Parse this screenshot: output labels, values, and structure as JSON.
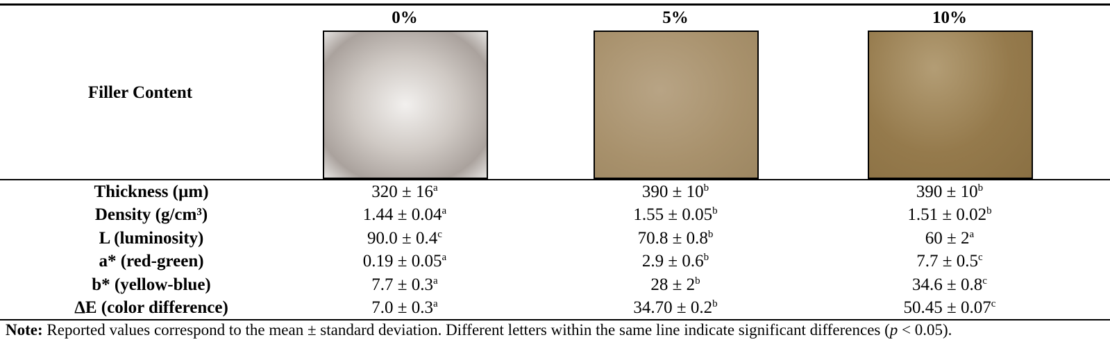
{
  "header": {
    "row_label": "Filler Content",
    "columns": [
      "0%",
      "5%",
      "10%"
    ]
  },
  "table": {
    "rows": [
      {
        "label": "Thickness (µm)",
        "cells": [
          {
            "value": "320 ± 16",
            "sup": "a"
          },
          {
            "value": "390 ± 10",
            "sup": "b"
          },
          {
            "value": "390 ± 10",
            "sup": "b"
          }
        ]
      },
      {
        "label": "Density (g/cm³)",
        "cells": [
          {
            "value": "1.44 ± 0.04",
            "sup": "a"
          },
          {
            "value": "1.55 ± 0.05",
            "sup": "b"
          },
          {
            "value": "1.51 ± 0.02",
            "sup": "b"
          }
        ]
      },
      {
        "label": "L (luminosity)",
        "cells": [
          {
            "value": "90.0 ± 0.4",
            "sup": "c"
          },
          {
            "value": "70.8 ± 0.8",
            "sup": "b"
          },
          {
            "value": "60 ± 2",
            "sup": "a"
          }
        ]
      },
      {
        "label": "a* (red-green)",
        "cells": [
          {
            "value": "0.19 ± 0.05",
            "sup": "a"
          },
          {
            "value": "2.9 ± 0.6",
            "sup": "b"
          },
          {
            "value": "7.7 ± 0.5",
            "sup": "c"
          }
        ]
      },
      {
        "label": "b* (yellow-blue)",
        "cells": [
          {
            "value": "7.7 ± 0.3",
            "sup": "a"
          },
          {
            "value": "28 ± 2",
            "sup": "b"
          },
          {
            "value": "34.6 ± 0.8",
            "sup": "c"
          }
        ]
      },
      {
        "label": "ΔE (color difference)",
        "cells": [
          {
            "value": "7.0 ± 0.3",
            "sup": "a"
          },
          {
            "value": "34.70 ± 0.2",
            "sup": "b"
          },
          {
            "value": "50.45 ± 0.07",
            "sup": "c"
          }
        ]
      }
    ]
  },
  "note": {
    "label": "Note:",
    "text_before": " Reported values correspond to the mean ± standard deviation. Different letters within the same line indicate significant differences (",
    "italic": "p",
    "text_after": " < 0.05)."
  }
}
